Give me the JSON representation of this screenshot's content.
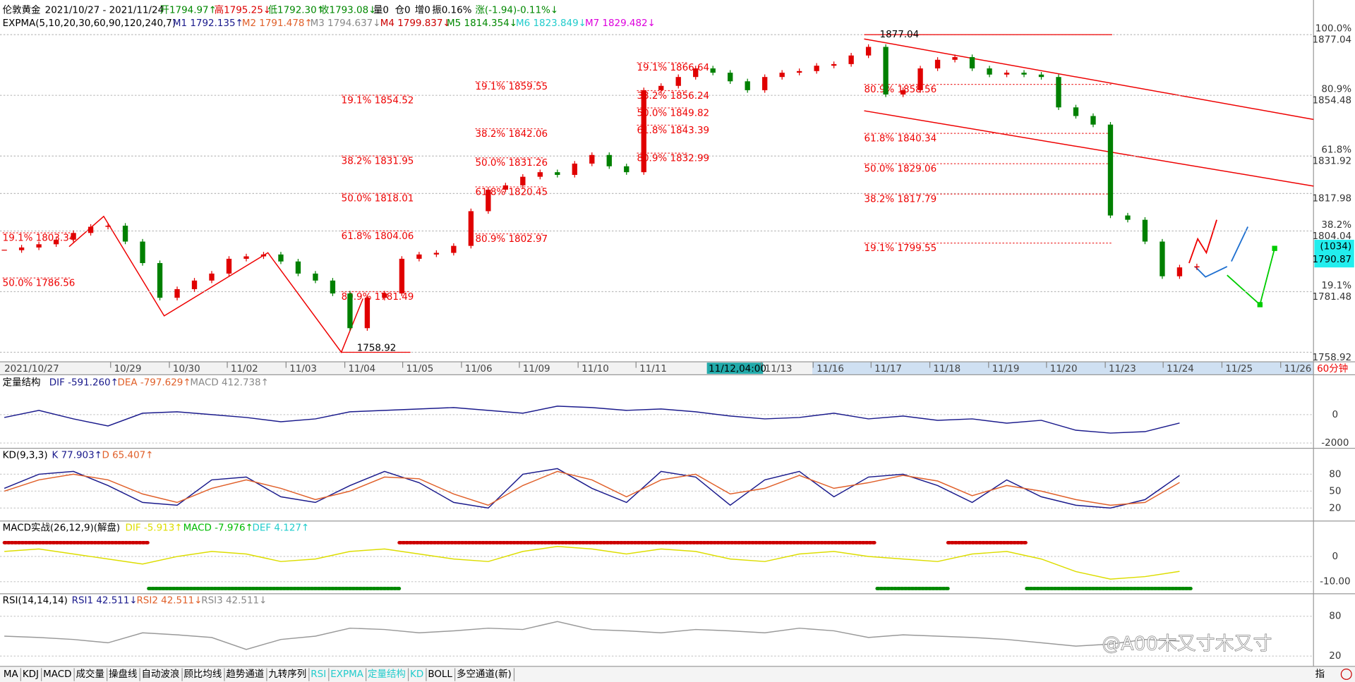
{
  "header": {
    "line1": [
      {
        "text": "伦敦黄金",
        "color": "#000"
      },
      {
        "text": "2021/10/27 - 2021/11/24",
        "color": "#000"
      },
      {
        "text": "开1794.97↑",
        "color": "#080"
      },
      {
        "text": "高1795.25↓",
        "color": "#d00"
      },
      {
        "text": "低1792.30↑",
        "color": "#080"
      },
      {
        "text": "收1793.08↓",
        "color": "#080"
      },
      {
        "text": "量0",
        "color": "#000"
      },
      {
        "text": "仓0",
        "color": "#000"
      },
      {
        "text": "增0",
        "color": "#000"
      },
      {
        "text": "振0.16%",
        "color": "#000"
      },
      {
        "text": "涨(-1.94)-0.11%↓",
        "color": "#080"
      }
    ],
    "line2": [
      {
        "text": "EXPMA(5,10,20,30,60,90,120,240,7)",
        "color": "#000"
      },
      {
        "text": "M1 1792.135↑",
        "color": "#1a1a8c"
      },
      {
        "text": "M2 1791.478↑",
        "color": "#e0602a"
      },
      {
        "text": "M3 1794.637↓",
        "color": "#888"
      },
      {
        "text": "M4 1799.837↓",
        "color": "#c00"
      },
      {
        "text": "M5 1814.354↓",
        "color": "#080"
      },
      {
        "text": "M6 1823.849↓",
        "color": "#2cc"
      },
      {
        "text": "M7 1829.482↓",
        "color": "#d0d"
      }
    ]
  },
  "chart_data": [
    {
      "type": "candlestick",
      "up_color": "#e00000",
      "down_color": "#008000",
      "values": [
        1796.9,
        1797.9,
        1799.1,
        1800.8,
        1803.3,
        1805.6,
        1806,
        1800.1,
        1792.1,
        1779.2,
        1782.4,
        1785.6,
        1788.2,
        1793.7,
        1794.6,
        1795.3,
        1792.7,
        1788.2,
        1785.6,
        1780.8,
        1767.9,
        1779.2,
        1780.8,
        1793.7,
        1795.3,
        1795.9,
        1798.5,
        1811.4,
        1819.4,
        1821,
        1824.2,
        1825.9,
        1824.9,
        1829.1,
        1832.3,
        1828.1,
        1825.9,
        1856.4,
        1858,
        1861.3,
        1864.5,
        1862.9,
        1859.7,
        1856.4,
        1861.3,
        1862.9,
        1863.5,
        1865.5,
        1866.1,
        1869.3,
        1872.5,
        1854.8,
        1856.4,
        1864.5,
        1867.7,
        1868.7,
        1864.5,
        1862.2,
        1862.9,
        1862.2,
        1861.3,
        1850,
        1846.8,
        1843.6,
        1809.8,
        1808.2,
        1800.1,
        1787.2,
        1790.5,
        1790.9
      ],
      "ylim": [
        1755.4,
        1883.5
      ],
      "yticks": [
        1877.04,
        1854.48,
        1831.92,
        1817.98,
        1804.04,
        1781.48,
        1758.92
      ],
      "pct_labels": [
        "100.0%",
        "80.9%",
        "61.8%",
        "38.2%",
        "19.1%"
      ],
      "grid": true,
      "x_labels": [
        "2021/10/27",
        "10/29",
        "10/30",
        "11/02",
        "11/03",
        "11/04",
        "11/05",
        "11/06",
        "11/09",
        "11/10",
        "11/11",
        "11/13",
        "11/16",
        "11/17",
        "11/18",
        "11/19",
        "11/20",
        "11/23",
        "11/24",
        "11/25",
        "11/26"
      ],
      "cursor_label": "11/12,04:00",
      "period": "60分钟",
      "last_count": "(1034)",
      "last_price": 1790.87,
      "high": 1877.04,
      "low": 1758.92,
      "fib_groups": [
        [
          {
            "value": 1854.52,
            "label": "19.1% 1854.52"
          },
          {
            "value": 1831.95,
            "label": "38.2% 1831.95"
          },
          {
            "value": 1818.01,
            "label": "50.0% 1818.01"
          },
          {
            "value": 1804.06,
            "label": "61.8% 1804.06"
          },
          {
            "value": 1781.49,
            "label": "80.9% 1781.49"
          }
        ],
        [
          {
            "value": 1859.55,
            "label": "19.1% 1859.55"
          },
          {
            "value": 1842.06,
            "label": "38.2% 1842.06"
          },
          {
            "value": 1831.26,
            "label": "50.0% 1831.26"
          },
          {
            "value": 1820.45,
            "label": "61.8% 1820.45"
          },
          {
            "value": 1802.97,
            "label": "80.9% 1802.97"
          }
        ],
        [
          {
            "value": 1866.64,
            "label": "19.1% 1866.64"
          },
          {
            "value": 1856.24,
            "label": "38.2% 1856.24"
          },
          {
            "value": 1849.82,
            "label": "50.0% 1849.82"
          },
          {
            "value": 1843.39,
            "label": "61.8% 1843.39"
          },
          {
            "value": 1832.99,
            "label": "80.9% 1832.99"
          }
        ],
        [
          {
            "value": 1858.56,
            "label": "80.9% 1858.56"
          },
          {
            "value": 1840.34,
            "label": "61.8% 1840.34"
          },
          {
            "value": 1829.06,
            "label": "50.0% 1829.06"
          },
          {
            "value": 1817.79,
            "label": "38.2% 1817.79"
          },
          {
            "value": 1799.55,
            "label": "19.1% 1799.55"
          }
        ],
        [
          {
            "value": 1803.34,
            "label": "19.1% 1803.34"
          },
          {
            "value": 1786.56,
            "label": "50.0% 1786.56"
          }
        ]
      ]
    },
    {
      "type": "line",
      "legend": [
        {
          "text": "定量结构",
          "color": "#000"
        },
        {
          "text": "DIF -591.260↑",
          "color": "#1a1a8c"
        },
        {
          "text": "DEA -797.629↑",
          "color": "#e0602a"
        },
        {
          "text": "MACD 412.738↑",
          "color": "#888"
        }
      ],
      "series": [
        {
          "color": "#1a1a8c",
          "values": [
            -200,
            300,
            -300,
            -800,
            100,
            200,
            0,
            -200,
            -500,
            -300,
            200,
            300,
            400,
            500,
            300,
            100,
            600,
            500,
            300,
            400,
            200,
            -100,
            -300,
            -200,
            100,
            -300,
            -100,
            -400,
            -300,
            -600,
            -400,
            -1100,
            -1300,
            -1200,
            -591.26
          ]
        }
      ],
      "ylim": [
        -2375,
        2812
      ],
      "yticks": [
        0,
        -2000
      ]
    },
    {
      "type": "line",
      "legend": [
        {
          "text": "KD(9,3,3)",
          "color": "#000"
        },
        {
          "text": "K 77.903↑",
          "color": "#1a1a8c"
        },
        {
          "text": "D 65.407↑",
          "color": "#e0602a"
        }
      ],
      "series": [
        {
          "color": "#1a1a8c",
          "values": [
            55,
            80,
            85,
            60,
            30,
            25,
            70,
            75,
            40,
            30,
            60,
            85,
            65,
            30,
            20,
            80,
            90,
            55,
            30,
            85,
            75,
            25,
            70,
            85,
            40,
            75,
            80,
            60,
            30,
            70,
            40,
            25,
            20,
            35,
            77.903
          ]
        },
        {
          "color": "#e0602a",
          "values": [
            50,
            70,
            80,
            70,
            45,
            30,
            55,
            70,
            55,
            35,
            50,
            75,
            72,
            45,
            25,
            60,
            85,
            70,
            40,
            70,
            80,
            45,
            55,
            78,
            55,
            65,
            78,
            68,
            42,
            60,
            50,
            35,
            25,
            30,
            65.407
          ]
        }
      ],
      "ylim": [
        -3,
        126
      ],
      "yticks": [
        80,
        50,
        20
      ]
    },
    {
      "type": "line",
      "legend": [
        {
          "text": "MACD实战(26,12,9)(解盘)",
          "color": "#000"
        },
        {
          "text": "DIF -5.913↑",
          "color": "#dd0"
        },
        {
          "text": "MACD -7.976↑",
          "color": "#0b0"
        },
        {
          "text": "DEF 4.127↑",
          "color": "#2cc"
        }
      ],
      "series": [
        {
          "color": "#dd0",
          "values": [
            2,
            3,
            1,
            -1,
            -3,
            0,
            2,
            1,
            -2,
            -1,
            2,
            3,
            1,
            -1,
            -2,
            2,
            4,
            3,
            1,
            3,
            2,
            -1,
            -2,
            1,
            2,
            0,
            -1,
            -2,
            1,
            2,
            -1,
            -6,
            -9,
            -8,
            -5.913
          ]
        }
      ],
      "ylim": [
        -14.8,
        14.1
      ],
      "yticks": [
        0,
        {
          "value": -10,
          "label": "-10.00"
        }
      ]
    },
    {
      "type": "line",
      "legend": [
        {
          "text": "RSI(14,14,14)",
          "color": "#000"
        },
        {
          "text": "RSI1 42.511↓",
          "color": "#1a1a8c"
        },
        {
          "text": "RSI2 42.511↓",
          "color": "#e0602a"
        },
        {
          "text": "RSI3 42.511↓",
          "color": "#888"
        }
      ],
      "series": [
        {
          "color": "#999",
          "values": [
            50,
            48,
            45,
            40,
            55,
            52,
            48,
            30,
            45,
            50,
            62,
            60,
            55,
            58,
            62,
            60,
            72,
            60,
            58,
            55,
            60,
            58,
            55,
            62,
            58,
            48,
            52,
            50,
            48,
            45,
            40,
            35,
            38,
            45,
            42.511
          ]
        }
      ],
      "ylim": [
        4.4,
        113.9
      ],
      "yticks": [
        80,
        20
      ]
    }
  ],
  "tabs": [
    {
      "text": "MA",
      "color": "#000"
    },
    {
      "text": "KDJ",
      "color": "#000"
    },
    {
      "text": "MACD",
      "color": "#000"
    },
    {
      "text": "成交量",
      "color": "#000"
    },
    {
      "text": "操盘线",
      "color": "#000"
    },
    {
      "text": "自动波浪",
      "color": "#000"
    },
    {
      "text": "顾比均线",
      "color": "#000"
    },
    {
      "text": "趋势通道",
      "color": "#000"
    },
    {
      "text": "九转序列",
      "color": "#000"
    },
    {
      "text": "RSI",
      "color": "#2cc"
    },
    {
      "text": "EXPMA",
      "color": "#2cc"
    },
    {
      "text": "定量结构",
      "color": "#2cc"
    },
    {
      "text": "KD",
      "color": "#2cc"
    },
    {
      "text": "BOLL",
      "color": "#000"
    },
    {
      "text": "多空通道(新)",
      "color": "#000"
    }
  ],
  "corner": "指",
  "watermark": "@A00木又寸木又寸"
}
